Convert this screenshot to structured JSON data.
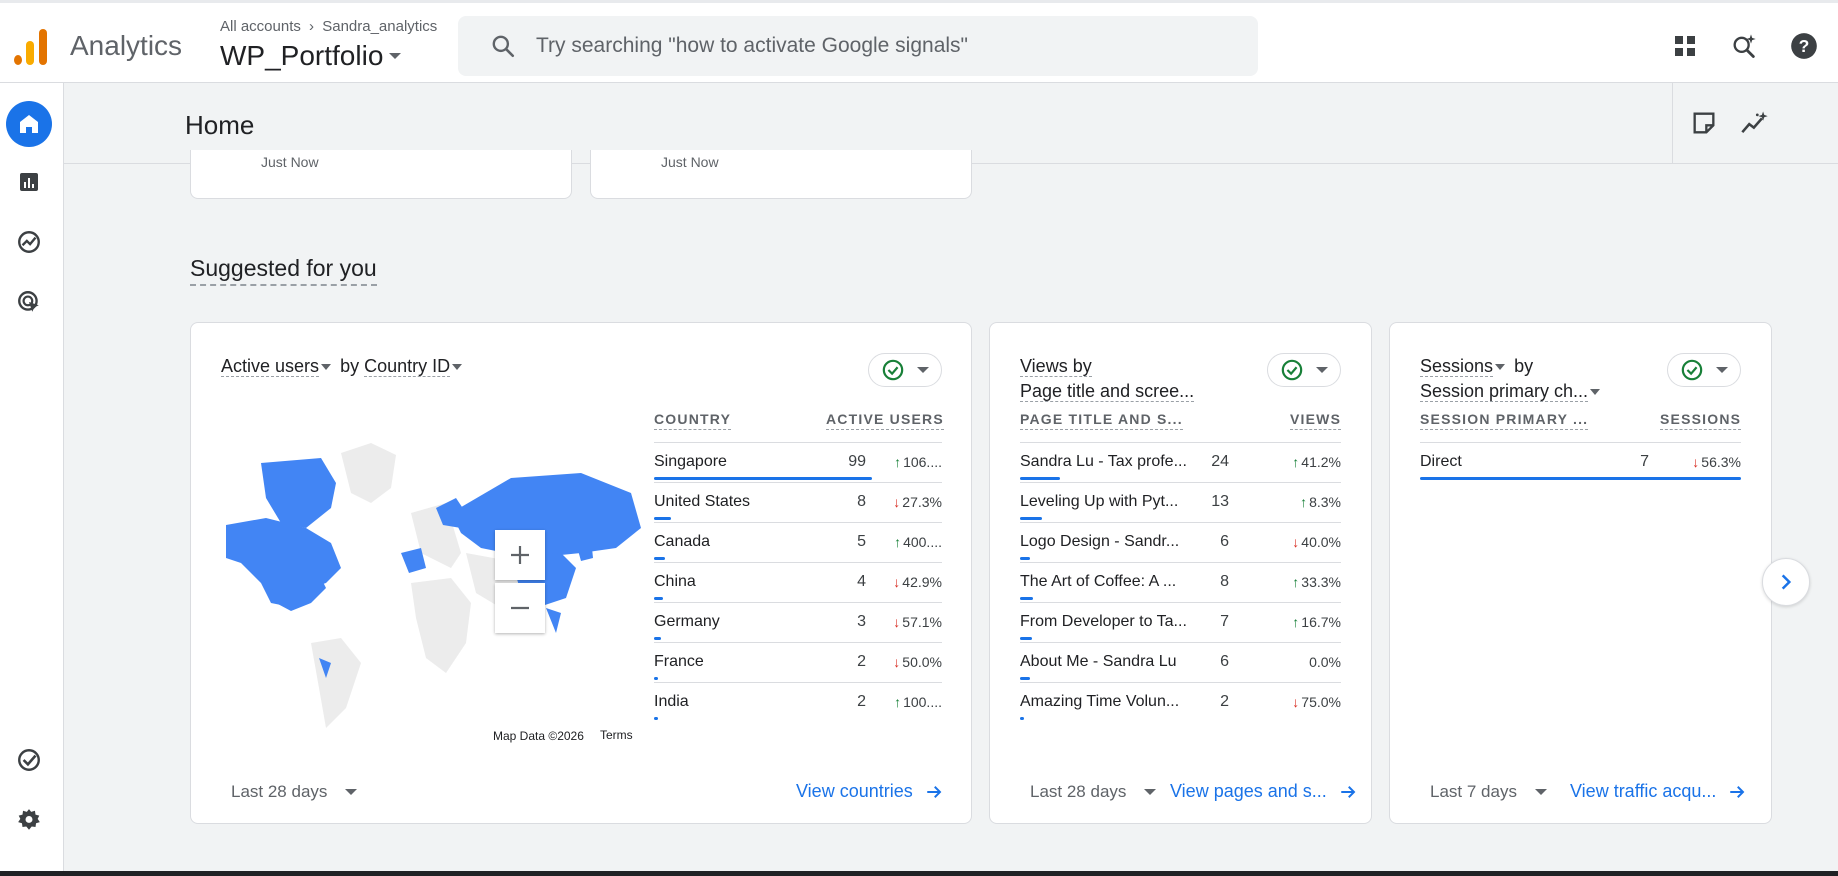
{
  "app": {
    "name": "Analytics"
  },
  "breadcrumb": {
    "root": "All accounts",
    "account": "Sandra_analytics"
  },
  "property": {
    "name": "WP_Portfolio"
  },
  "search": {
    "placeholder": "Try searching \"how to activate Google signals\""
  },
  "page": {
    "title": "Home"
  },
  "partial_cards": [
    {
      "text": "Just Now"
    },
    {
      "text": "Just Now"
    }
  ],
  "suggested": {
    "title": "Suggested for you"
  },
  "countries_card": {
    "metric": "Active users",
    "by": "by",
    "dimension": "Country ID",
    "col_dimension": "COUNTRY",
    "col_metric": "ACTIVE USERS",
    "rows": [
      {
        "label": "Singapore",
        "value": "99",
        "dir": "up",
        "change": "106....",
        "fill": 1.0
      },
      {
        "label": "United States",
        "value": "8",
        "dir": "down",
        "change": "27.3%",
        "fill": 0.08
      },
      {
        "label": "Canada",
        "value": "5",
        "dir": "up",
        "change": "400....",
        "fill": 0.05
      },
      {
        "label": "China",
        "value": "4",
        "dir": "down",
        "change": "42.9%",
        "fill": 0.04
      },
      {
        "label": "Germany",
        "value": "3",
        "dir": "down",
        "change": "57.1%",
        "fill": 0.03
      },
      {
        "label": "France",
        "value": "2",
        "dir": "down",
        "change": "50.0%",
        "fill": 0.02
      },
      {
        "label": "India",
        "value": "2",
        "dir": "up",
        "change": "100....",
        "fill": 0.02
      }
    ],
    "map_data": "Map Data ©2026",
    "terms": "Terms",
    "date_range": "Last 28 days",
    "link": "View countries"
  },
  "pages_card": {
    "metric": "Views by",
    "dimension": "Page title and scree...",
    "col_dimension": "PAGE TITLE AND S...",
    "col_metric": "VIEWS",
    "rows": [
      {
        "label": "Sandra Lu - Tax profe...",
        "value": "24",
        "dir": "up",
        "change": "41.2%",
        "fill": 1.0
      },
      {
        "label": "Leveling Up with Pyt...",
        "value": "13",
        "dir": "up",
        "change": "8.3%",
        "fill": 0.54
      },
      {
        "label": "Logo Design - Sandr...",
        "value": "6",
        "dir": "down",
        "change": "40.0%",
        "fill": 0.25
      },
      {
        "label": "The Art of Coffee: A ...",
        "value": "8",
        "dir": "up",
        "change": "33.3%",
        "fill": 0.33
      },
      {
        "label": "From Developer to Ta...",
        "value": "7",
        "dir": "up",
        "change": "16.7%",
        "fill": 0.29
      },
      {
        "label": "About Me - Sandra Lu",
        "value": "6",
        "dir": "none",
        "change": "0.0%",
        "fill": 0.25
      },
      {
        "label": "Amazing Time Volun...",
        "value": "2",
        "dir": "down",
        "change": "75.0%",
        "fill": 0.08
      }
    ],
    "date_range": "Last 28 days",
    "link": "View pages and s..."
  },
  "sessions_card": {
    "metric": "Sessions",
    "by": "by",
    "dimension": "Session primary ch...",
    "col_dimension": "SESSION PRIMARY ...",
    "col_metric": "SESSIONS",
    "rows": [
      {
        "label": "Direct",
        "value": "7",
        "dir": "down",
        "change": "56.3%",
        "fill": 1.0
      }
    ],
    "date_range": "Last 7 days",
    "link": "View traffic acqu..."
  },
  "colors": {
    "accent": "#1a73e8",
    "up": "#188038",
    "down": "#d93025",
    "map_fill": "#4285f4"
  },
  "icons": [
    "search-icon",
    "apps-grid-icon",
    "search-insights-icon",
    "help-icon",
    "home-icon",
    "reports-icon",
    "explore-icon",
    "advertising-icon",
    "admin-check-icon",
    "settings-icon",
    "notes-icon",
    "insights-icon",
    "check-circle-icon",
    "arrow-right-icon",
    "chevron-right-icon"
  ]
}
